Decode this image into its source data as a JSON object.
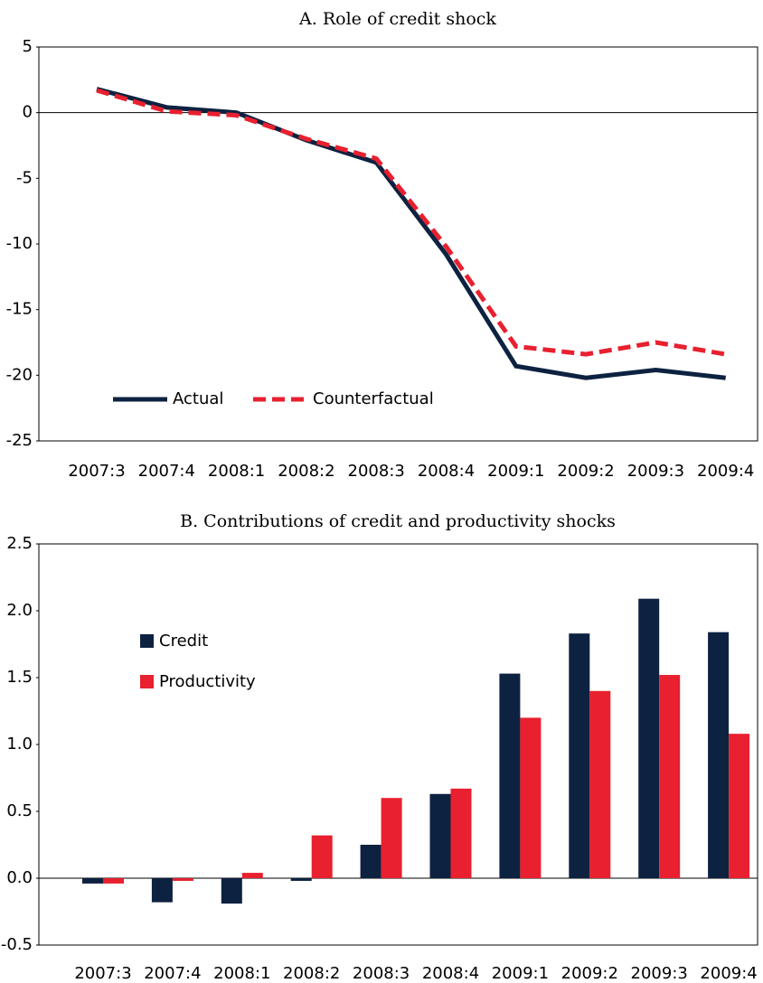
{
  "chart_data": [
    {
      "type": "line",
      "title": "A. Role of credit shock",
      "categories": [
        "2007:3",
        "2007:4",
        "2008:1",
        "2008:2",
        "2008:3",
        "2008:4",
        "2009:1",
        "2009:2",
        "2009:3",
        "2009:4"
      ],
      "series": [
        {
          "name": "Actual",
          "color": "#0d2240",
          "dash": false,
          "values": [
            1.8,
            0.4,
            0,
            -2.1,
            -3.8,
            -10.8,
            -19.3,
            -20.2,
            -19.6,
            -20.2
          ]
        },
        {
          "name": "Counterfactual",
          "color": "#e8202f",
          "dash": true,
          "values": [
            1.7,
            0.1,
            -0.2,
            -2.0,
            -3.5,
            -10.2,
            -17.8,
            -18.4,
            -17.5,
            -18.4
          ]
        }
      ],
      "ylim": [
        -25,
        5
      ],
      "yticks": [
        5,
        0,
        -5,
        -10,
        -15,
        -20,
        -25
      ],
      "legend": "lower left"
    },
    {
      "type": "bar",
      "title": "B. Contributions of credit and productivity shocks",
      "categories": [
        "2007:3",
        "2007:4",
        "2008:1",
        "2008:2",
        "2008:3",
        "2008:4",
        "2009:1",
        "2009:2",
        "2009:3",
        "2009:4"
      ],
      "series": [
        {
          "name": "Credit",
          "color": "#0d2240",
          "values": [
            -0.04,
            -0.18,
            -0.19,
            -0.02,
            0.25,
            0.63,
            1.53,
            1.83,
            2.09,
            1.84
          ]
        },
        {
          "name": "Productivity",
          "color": "#e8202f",
          "values": [
            -0.04,
            -0.02,
            0.04,
            0.32,
            0.6,
            0.67,
            1.2,
            1.4,
            1.52,
            1.08
          ]
        }
      ],
      "ylim": [
        -0.5,
        2.5
      ],
      "yticks": [
        2.5,
        {
          "value": 2,
          "label": "2.0"
        },
        1.5,
        {
          "value": 1,
          "label": "1.0"
        },
        0.5,
        {
          "value": 0,
          "label": "0.0"
        },
        -0.5
      ],
      "legend": "upper left"
    }
  ]
}
